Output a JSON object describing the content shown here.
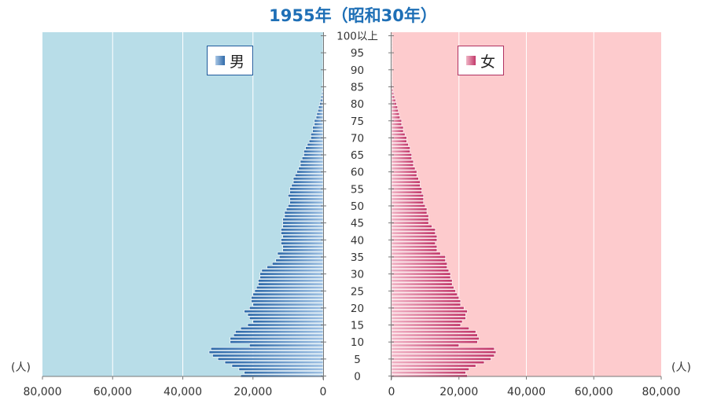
{
  "title": "1955年（昭和30年）",
  "colors": {
    "male_bg": "#b8dde8",
    "female_bg": "#fdcbcd",
    "male_bar": "#2f6aa9",
    "female_bar": "#c2386a"
  },
  "chart_data": {
    "type": "bar",
    "orientation": "horizontal",
    "subtype": "population_pyramid",
    "title": "1955年（昭和30年）",
    "xlim": [
      0,
      80000
    ],
    "x_ticks": [
      "80,000",
      "60,000",
      "40,000",
      "20,000",
      "0"
    ],
    "x_ticks_female": [
      "0",
      "20,000",
      "40,000",
      "60,000",
      "80,000"
    ],
    "x_unit": "(人)",
    "age_labels": [
      "100以上",
      "95",
      "90",
      "85",
      "80",
      "75",
      "70",
      "65",
      "60",
      "55",
      "50",
      "45",
      "40",
      "35",
      "30",
      "25",
      "20",
      "15",
      "10",
      "5",
      "0"
    ],
    "grid": true,
    "legend": [
      "男",
      "女"
    ],
    "ages": [
      0,
      1,
      2,
      3,
      4,
      5,
      6,
      7,
      8,
      9,
      10,
      11,
      12,
      13,
      14,
      15,
      16,
      17,
      18,
      19,
      20,
      21,
      22,
      23,
      24,
      25,
      26,
      27,
      28,
      29,
      30,
      31,
      32,
      33,
      34,
      35,
      36,
      37,
      38,
      39,
      40,
      41,
      42,
      43,
      44,
      45,
      46,
      47,
      48,
      49,
      50,
      51,
      52,
      53,
      54,
      55,
      56,
      57,
      58,
      59,
      60,
      61,
      62,
      63,
      64,
      65,
      66,
      67,
      68,
      69,
      70,
      71,
      72,
      73,
      74,
      75,
      76,
      77,
      78,
      79,
      80,
      81,
      82,
      83,
      84,
      85,
      86,
      87,
      88,
      89,
      90,
      91,
      92,
      93,
      94,
      95,
      96,
      97,
      98,
      99,
      100
    ],
    "series": [
      {
        "name": "男",
        "values": [
          23500,
          22500,
          24000,
          26000,
          28000,
          30000,
          31500,
          32500,
          32000,
          21000,
          26500,
          26500,
          25500,
          25000,
          23500,
          21500,
          20000,
          21000,
          21500,
          22500,
          21000,
          20000,
          20500,
          20500,
          20000,
          19500,
          19000,
          18500,
          18500,
          18000,
          18000,
          17500,
          16000,
          14500,
          13500,
          12500,
          13000,
          11500,
          11500,
          12000,
          12000,
          11500,
          12000,
          12000,
          11500,
          11500,
          11500,
          11000,
          11000,
          10500,
          10000,
          9500,
          9500,
          10000,
          9500,
          9500,
          9000,
          8500,
          8500,
          8000,
          7500,
          7000,
          6500,
          6500,
          6000,
          5500,
          5500,
          5000,
          4500,
          4000,
          3500,
          3500,
          3000,
          3000,
          2500,
          2500,
          2000,
          1800,
          1500,
          1300,
          1000,
          800,
          600,
          400,
          250,
          150,
          100,
          70,
          50,
          30,
          20,
          15,
          10,
          5,
          5,
          3,
          2,
          1,
          1,
          1,
          1
        ]
      },
      {
        "name": "女",
        "values": [
          22500,
          22000,
          23000,
          25000,
          27500,
          29500,
          30500,
          31000,
          30500,
          20000,
          25500,
          26000,
          25500,
          25000,
          23000,
          20500,
          21000,
          22000,
          22000,
          22500,
          21500,
          20500,
          20500,
          20000,
          19500,
          19000,
          18500,
          18000,
          18000,
          17500,
          17500,
          17000,
          16500,
          16500,
          16000,
          16000,
          14500,
          13500,
          13500,
          13000,
          13500,
          13500,
          13000,
          13000,
          12000,
          11000,
          11000,
          11000,
          10500,
          10500,
          10000,
          9500,
          9500,
          9500,
          9000,
          9000,
          8500,
          8500,
          8000,
          7500,
          7500,
          7000,
          6500,
          6500,
          6000,
          6000,
          5500,
          5500,
          5000,
          4500,
          4500,
          4000,
          3500,
          3500,
          3000,
          3000,
          2500,
          2300,
          2000,
          1800,
          1500,
          1200,
          900,
          650,
          450,
          300,
          200,
          130,
          90,
          60,
          40,
          25,
          15,
          10,
          7,
          5,
          3,
          2,
          2,
          1,
          1
        ]
      }
    ]
  }
}
